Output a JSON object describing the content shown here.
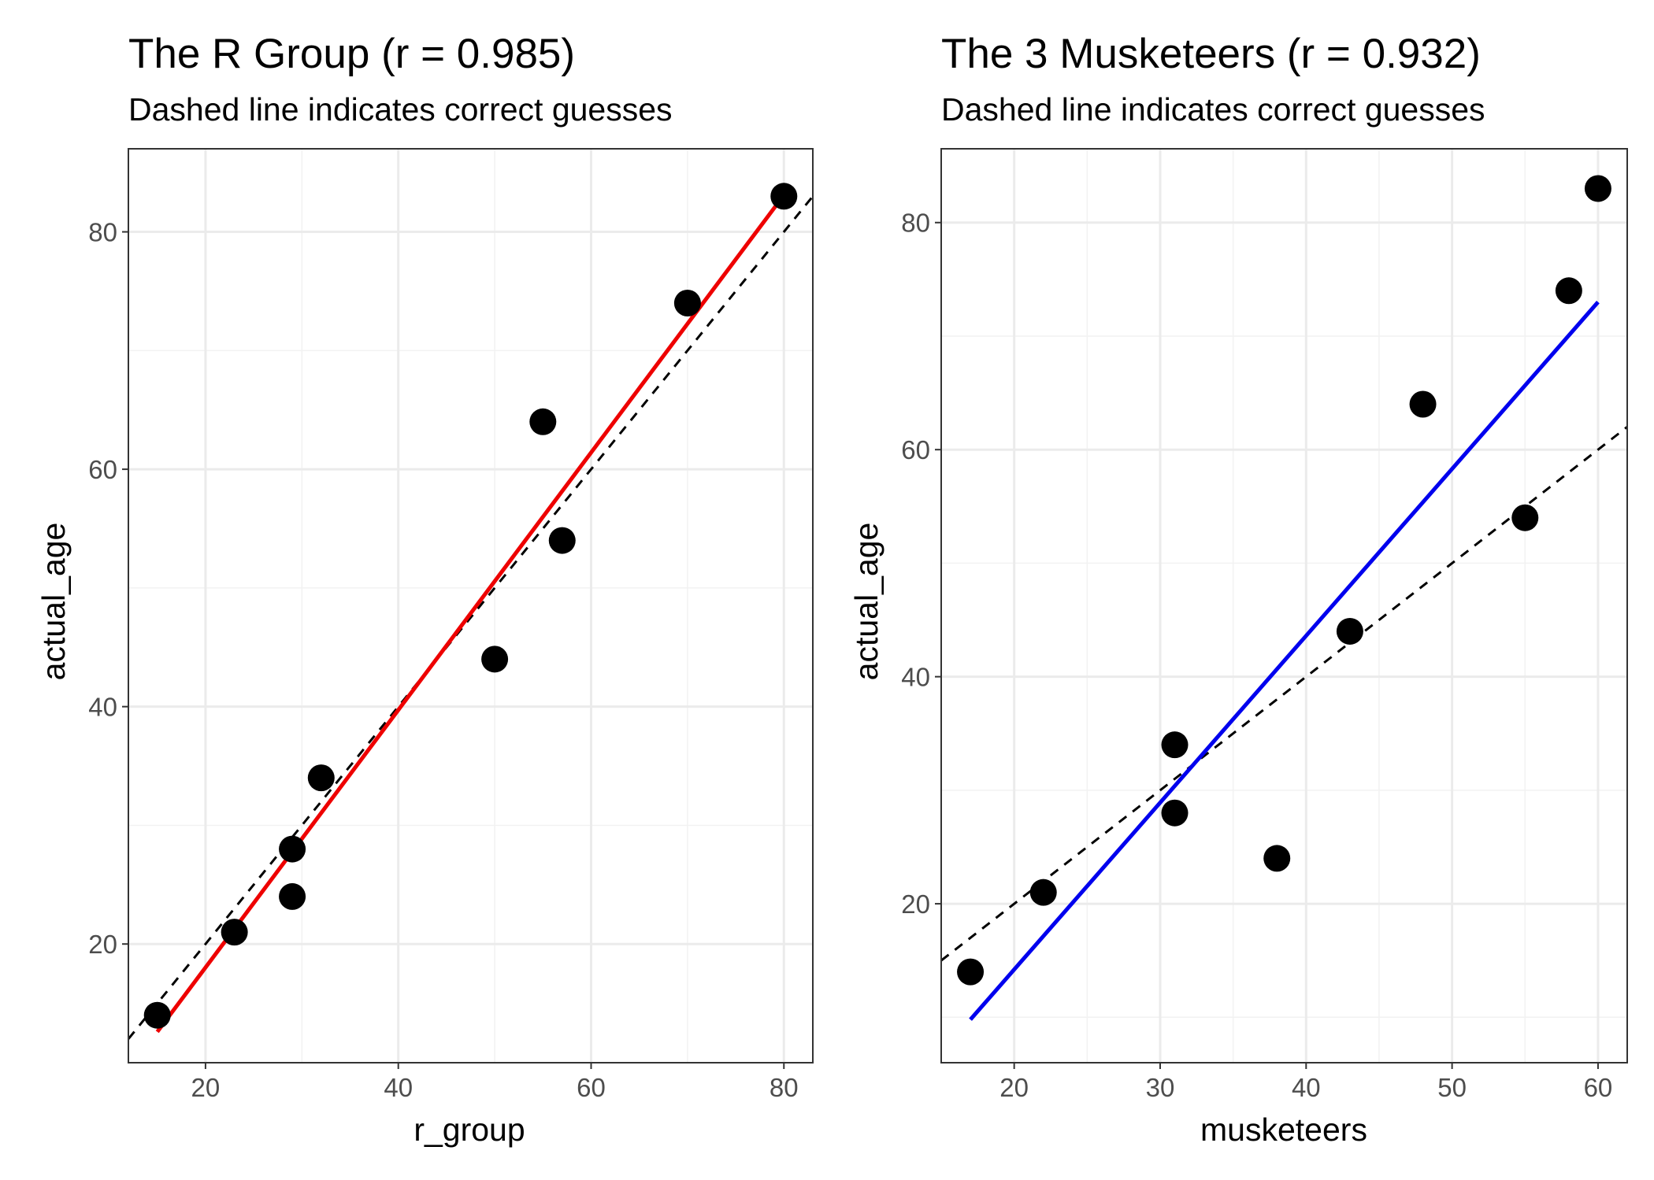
{
  "chart_data": [
    {
      "type": "scatter",
      "title": "The R Group (r = 0.985)",
      "subtitle": "Dashed line indicates correct guesses",
      "xlabel": "r_group",
      "ylabel": "actual_age",
      "xlim": [
        12,
        83
      ],
      "ylim": [
        10,
        87
      ],
      "xticks": [
        20,
        40,
        60,
        80
      ],
      "yticks": [
        20,
        40,
        60,
        80
      ],
      "xtick_labels": [
        "20",
        "40",
        "60",
        "80"
      ],
      "ytick_labels": [
        "20",
        "40",
        "60",
        "80"
      ],
      "grid": true,
      "points": [
        {
          "x": 15,
          "y": 14
        },
        {
          "x": 23,
          "y": 21
        },
        {
          "x": 29,
          "y": 24
        },
        {
          "x": 29,
          "y": 28
        },
        {
          "x": 32,
          "y": 34
        },
        {
          "x": 50,
          "y": 44
        },
        {
          "x": 55,
          "y": 64
        },
        {
          "x": 57,
          "y": 54
        },
        {
          "x": 70,
          "y": 74
        },
        {
          "x": 80,
          "y": 83
        }
      ],
      "fit_line": {
        "color": "#ee0000",
        "x": [
          15,
          80
        ],
        "y": [
          12.6,
          83.1
        ]
      },
      "reference_line": {
        "style": "dashed",
        "slope": 1,
        "intercept": 0
      },
      "point_color": "#000000"
    },
    {
      "type": "scatter",
      "title": "The 3 Musketeers (r = 0.932)",
      "subtitle": "Dashed line indicates correct guesses",
      "xlabel": "musketeers",
      "ylabel": "actual_age",
      "xlim": [
        15,
        62
      ],
      "ylim": [
        6,
        86.5
      ],
      "xticks": [
        20,
        30,
        40,
        50,
        60
      ],
      "yticks": [
        20,
        40,
        60,
        80
      ],
      "xtick_labels": [
        "20",
        "30",
        "40",
        "50",
        "60"
      ],
      "ytick_labels": [
        "20",
        "40",
        "60",
        "80"
      ],
      "grid": true,
      "points": [
        {
          "x": 17,
          "y": 14
        },
        {
          "x": 22,
          "y": 21
        },
        {
          "x": 31,
          "y": 28
        },
        {
          "x": 31,
          "y": 34
        },
        {
          "x": 38,
          "y": 24
        },
        {
          "x": 43,
          "y": 44
        },
        {
          "x": 48,
          "y": 64
        },
        {
          "x": 55,
          "y": 54
        },
        {
          "x": 58,
          "y": 74
        },
        {
          "x": 60,
          "y": 83
        }
      ],
      "fit_line": {
        "color": "#0000ee",
        "x": [
          17,
          60
        ],
        "y": [
          9.8,
          73.0
        ]
      },
      "reference_line": {
        "style": "dashed",
        "slope": 1,
        "intercept": 0
      },
      "point_color": "#000000"
    }
  ]
}
